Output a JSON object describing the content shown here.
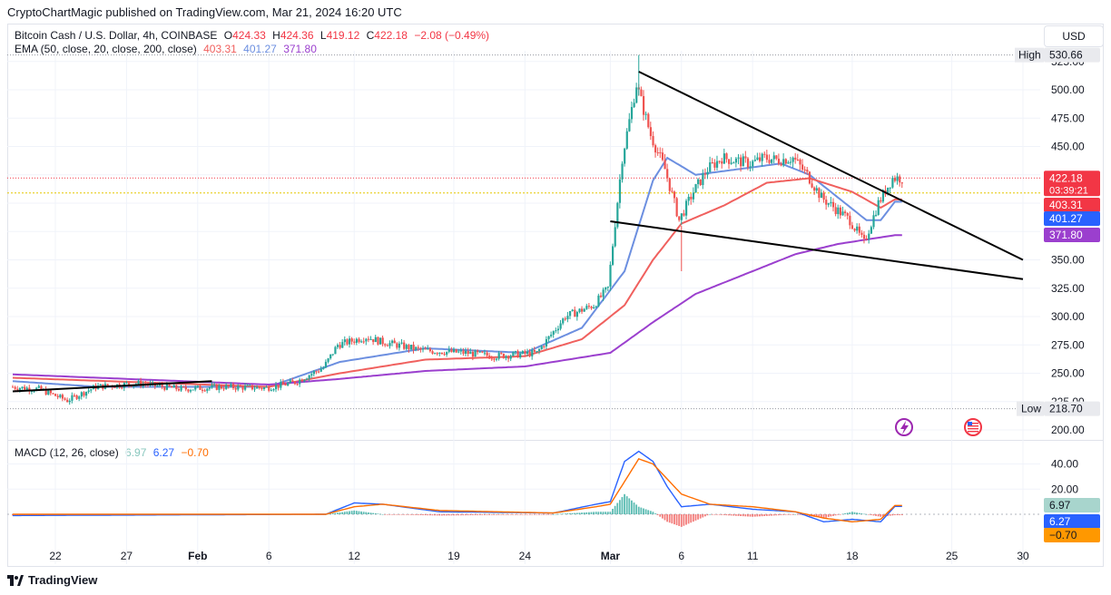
{
  "header": {
    "published_line": "CryptoChartMagic published on TradingView.com, Mar 21, 2024 16:20 UTC",
    "symbol": "Bitcoin Cash / U.S. Dollar, 4h, COINBASE",
    "ohlc": {
      "o_label": "O",
      "o_value": "424.33",
      "h_label": "H",
      "h_value": "424.36",
      "l_label": "L",
      "l_value": "419.12",
      "c_label": "C",
      "c_value": "422.18",
      "change": "−2.08 (−0.49%)"
    },
    "ema_label": "EMA (50, close, 20, close, 200, close)",
    "ema_values": [
      "403.31",
      "401.27",
      "371.80"
    ],
    "macd_label": "MACD (12, 26, close)",
    "macd_values": [
      "6.97",
      "6.27",
      "−0.70"
    ]
  },
  "toolbar": {
    "currency_button": "USD"
  },
  "footer": {
    "brand": "TradingView"
  },
  "colors": {
    "up": "#26a69a",
    "down": "#ef5350",
    "ema50": "#f0605e",
    "ema20": "#6c8fe0",
    "ema200": "#9b3fce",
    "macd": "#2962ff",
    "signal": "#ff6d00",
    "hist_up": "#26a69a",
    "hist_down": "#ef5350",
    "price_tag": "#f23645",
    "trendline": "#000000"
  },
  "chart_data": {
    "type": "candlestick",
    "x_ticks": [
      "22",
      "27",
      "Feb",
      "6",
      "12",
      "19",
      "24",
      "Mar",
      "6",
      "11",
      "18",
      "25",
      "30"
    ],
    "y_ticks": [
      200,
      225,
      250,
      275,
      300,
      325,
      350,
      375,
      400,
      425,
      450,
      475,
      500,
      525
    ],
    "y_tick_labels": [
      "200.00",
      "225.00",
      "250.00",
      "275.00",
      "300.00",
      "325.00",
      "350.00",
      "375.00",
      "400.00",
      "425.00",
      "450.00",
      "475.00",
      "500.00",
      "525.00"
    ],
    "ylim": [
      190,
      540
    ],
    "high": {
      "label": "High",
      "value": 530.66,
      "text": "530.66"
    },
    "low": {
      "label": "Low",
      "value": 218.7,
      "text": "218.70"
    },
    "last_price": {
      "value": 422.18,
      "text": "422.18",
      "countdown": "03:39:21"
    },
    "ema_tags": [
      {
        "name": "EMA 50",
        "value": 403.31,
        "text": "403.31"
      },
      {
        "name": "EMA 20",
        "value": 401.27,
        "text": "401.27"
      },
      {
        "name": "EMA 200",
        "value": 371.8,
        "text": "371.80"
      }
    ],
    "price_series": [
      {
        "date": "2024-01-19",
        "close": 238
      },
      {
        "date": "2024-01-21",
        "close": 236
      },
      {
        "date": "2024-01-23",
        "close": 226
      },
      {
        "date": "2024-01-25",
        "close": 238
      },
      {
        "date": "2024-01-28",
        "close": 241
      },
      {
        "date": "2024-01-31",
        "close": 236
      },
      {
        "date": "2024-02-03",
        "close": 238
      },
      {
        "date": "2024-02-06",
        "close": 237
      },
      {
        "date": "2024-02-08",
        "close": 242
      },
      {
        "date": "2024-02-10",
        "close": 255
      },
      {
        "date": "2024-02-11",
        "close": 275
      },
      {
        "date": "2024-02-13",
        "close": 282
      },
      {
        "date": "2024-02-14",
        "close": 278
      },
      {
        "date": "2024-02-17",
        "close": 270
      },
      {
        "date": "2024-02-20",
        "close": 268
      },
      {
        "date": "2024-02-22",
        "close": 265
      },
      {
        "date": "2024-02-25",
        "close": 268
      },
      {
        "date": "2024-02-27",
        "close": 300
      },
      {
        "date": "2024-02-28",
        "close": 305
      },
      {
        "date": "2024-02-29",
        "close": 310
      },
      {
        "date": "2024-03-01",
        "close": 325
      },
      {
        "date": "2024-03-02",
        "close": 440
      },
      {
        "date": "2024-03-03",
        "close": 505
      },
      {
        "date": "2024-03-04",
        "close": 460
      },
      {
        "date": "2024-03-05",
        "close": 430
      },
      {
        "date": "2024-03-06",
        "close": 385
      },
      {
        "date": "2024-03-07",
        "close": 410
      },
      {
        "date": "2024-03-08",
        "close": 430
      },
      {
        "date": "2024-03-09",
        "close": 440
      },
      {
        "date": "2024-03-11",
        "close": 435
      },
      {
        "date": "2024-03-12",
        "close": 440
      },
      {
        "date": "2024-03-13",
        "close": 438
      },
      {
        "date": "2024-03-14",
        "close": 440
      },
      {
        "date": "2024-03-15",
        "close": 425
      },
      {
        "date": "2024-03-16",
        "close": 405
      },
      {
        "date": "2024-03-17",
        "close": 395
      },
      {
        "date": "2024-03-18",
        "close": 385
      },
      {
        "date": "2024-03-19",
        "close": 365
      },
      {
        "date": "2024-03-20",
        "close": 400
      },
      {
        "date": "2024-03-21",
        "close": 422.18
      }
    ],
    "ema_series": [
      {
        "name": "EMA 20",
        "points": [
          [
            "2024-01-19",
            243
          ],
          [
            "2024-01-25",
            238
          ],
          [
            "2024-02-06",
            238
          ],
          [
            "2024-02-11",
            260
          ],
          [
            "2024-02-17",
            272
          ],
          [
            "2024-02-24",
            268
          ],
          [
            "2024-02-28",
            290
          ],
          [
            "2024-03-02",
            340
          ],
          [
            "2024-03-04",
            420
          ],
          [
            "2024-03-05",
            440
          ],
          [
            "2024-03-07",
            425
          ],
          [
            "2024-03-10",
            430
          ],
          [
            "2024-03-13",
            435
          ],
          [
            "2024-03-15",
            425
          ],
          [
            "2024-03-17",
            405
          ],
          [
            "2024-03-19",
            385
          ],
          [
            "2024-03-20",
            385
          ],
          [
            "2024-03-21",
            401.27
          ]
        ]
      },
      {
        "name": "EMA 50",
        "points": [
          [
            "2024-01-19",
            246
          ],
          [
            "2024-02-06",
            238
          ],
          [
            "2024-02-11",
            250
          ],
          [
            "2024-02-17",
            262
          ],
          [
            "2024-02-24",
            265
          ],
          [
            "2024-02-28",
            280
          ],
          [
            "2024-03-02",
            310
          ],
          [
            "2024-03-04",
            350
          ],
          [
            "2024-03-06",
            382
          ],
          [
            "2024-03-09",
            398
          ],
          [
            "2024-03-12",
            418
          ],
          [
            "2024-03-15",
            422
          ],
          [
            "2024-03-18",
            410
          ],
          [
            "2024-03-20",
            396
          ],
          [
            "2024-03-21",
            403.31
          ]
        ]
      },
      {
        "name": "EMA 200",
        "points": [
          [
            "2024-01-19",
            249
          ],
          [
            "2024-02-06",
            240
          ],
          [
            "2024-02-11",
            245
          ],
          [
            "2024-02-17",
            252
          ],
          [
            "2024-02-24",
            256
          ],
          [
            "2024-03-01",
            268
          ],
          [
            "2024-03-04",
            295
          ],
          [
            "2024-03-07",
            320
          ],
          [
            "2024-03-10",
            335
          ],
          [
            "2024-03-14",
            355
          ],
          [
            "2024-03-17",
            364
          ],
          [
            "2024-03-21",
            371.8
          ]
        ]
      }
    ],
    "trendlines": [
      {
        "from": [
          "2024-03-03",
          516
        ],
        "to": [
          "2024-03-30",
          350
        ]
      },
      {
        "from": [
          "2024-03-01",
          384
        ],
        "to": [
          "2024-03-30",
          333
        ]
      },
      {
        "from": [
          "2024-01-19",
          234
        ],
        "to": [
          "2024-02-02",
          243
        ]
      }
    ],
    "macd": {
      "ylim": [
        -20,
        60
      ],
      "y_ticks": [
        20,
        40
      ],
      "y_tick_labels": [
        "20.00",
        "40.00"
      ],
      "macd_points": [
        [
          "2024-01-19",
          -1
        ],
        [
          "2024-02-10",
          0
        ],
        [
          "2024-02-12",
          9
        ],
        [
          "2024-02-14",
          8
        ],
        [
          "2024-02-18",
          2
        ],
        [
          "2024-02-26",
          1
        ],
        [
          "2024-02-29",
          8
        ],
        [
          "2024-03-01",
          10
        ],
        [
          "2024-03-02",
          42
        ],
        [
          "2024-03-03",
          50
        ],
        [
          "2024-03-04",
          42
        ],
        [
          "2024-03-05",
          22
        ],
        [
          "2024-03-06",
          6
        ],
        [
          "2024-03-08",
          8
        ],
        [
          "2024-03-11",
          4
        ],
        [
          "2024-03-14",
          2
        ],
        [
          "2024-03-16",
          -6
        ],
        [
          "2024-03-18",
          -4
        ],
        [
          "2024-03-20",
          -6
        ],
        [
          "2024-03-21",
          6.27
        ]
      ],
      "signal_points": [
        [
          "2024-01-19",
          0
        ],
        [
          "2024-02-10",
          0
        ],
        [
          "2024-02-12",
          6
        ],
        [
          "2024-02-14",
          8
        ],
        [
          "2024-02-18",
          3
        ],
        [
          "2024-02-26",
          1
        ],
        [
          "2024-02-29",
          6
        ],
        [
          "2024-03-01",
          8
        ],
        [
          "2024-03-03",
          44
        ],
        [
          "2024-03-04",
          40
        ],
        [
          "2024-03-06",
          16
        ],
        [
          "2024-03-08",
          8
        ],
        [
          "2024-03-11",
          6
        ],
        [
          "2024-03-14",
          2
        ],
        [
          "2024-03-16",
          -3
        ],
        [
          "2024-03-18",
          -6
        ],
        [
          "2024-03-20",
          -4
        ],
        [
          "2024-03-21",
          6.97
        ]
      ],
      "histogram_last": -0.7
    }
  }
}
